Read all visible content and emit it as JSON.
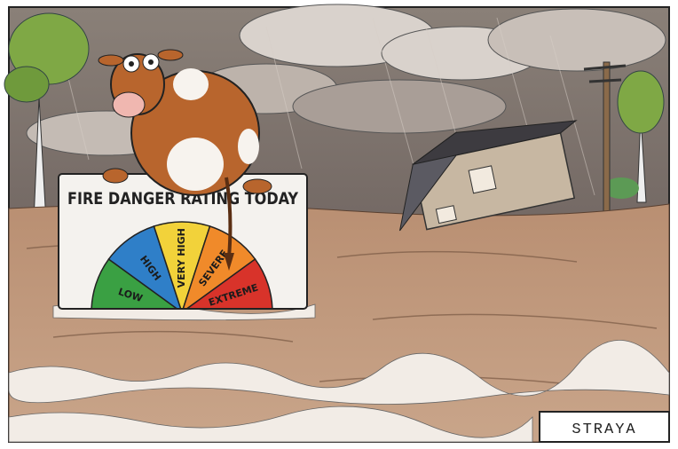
{
  "sign": {
    "title": "FIRE DANGER RATING TODAY",
    "ratings": [
      {
        "label": "LOW",
        "color": "#3aa043"
      },
      {
        "label": "HIGH",
        "color": "#2f7fc8"
      },
      {
        "label": "VERY HIGH",
        "color": "#f2d23a"
      },
      {
        "label": "SEVERE",
        "color": "#f08a2a"
      },
      {
        "label": "EXTREME",
        "color": "#d8332a"
      }
    ]
  },
  "caption": "STRAYA"
}
